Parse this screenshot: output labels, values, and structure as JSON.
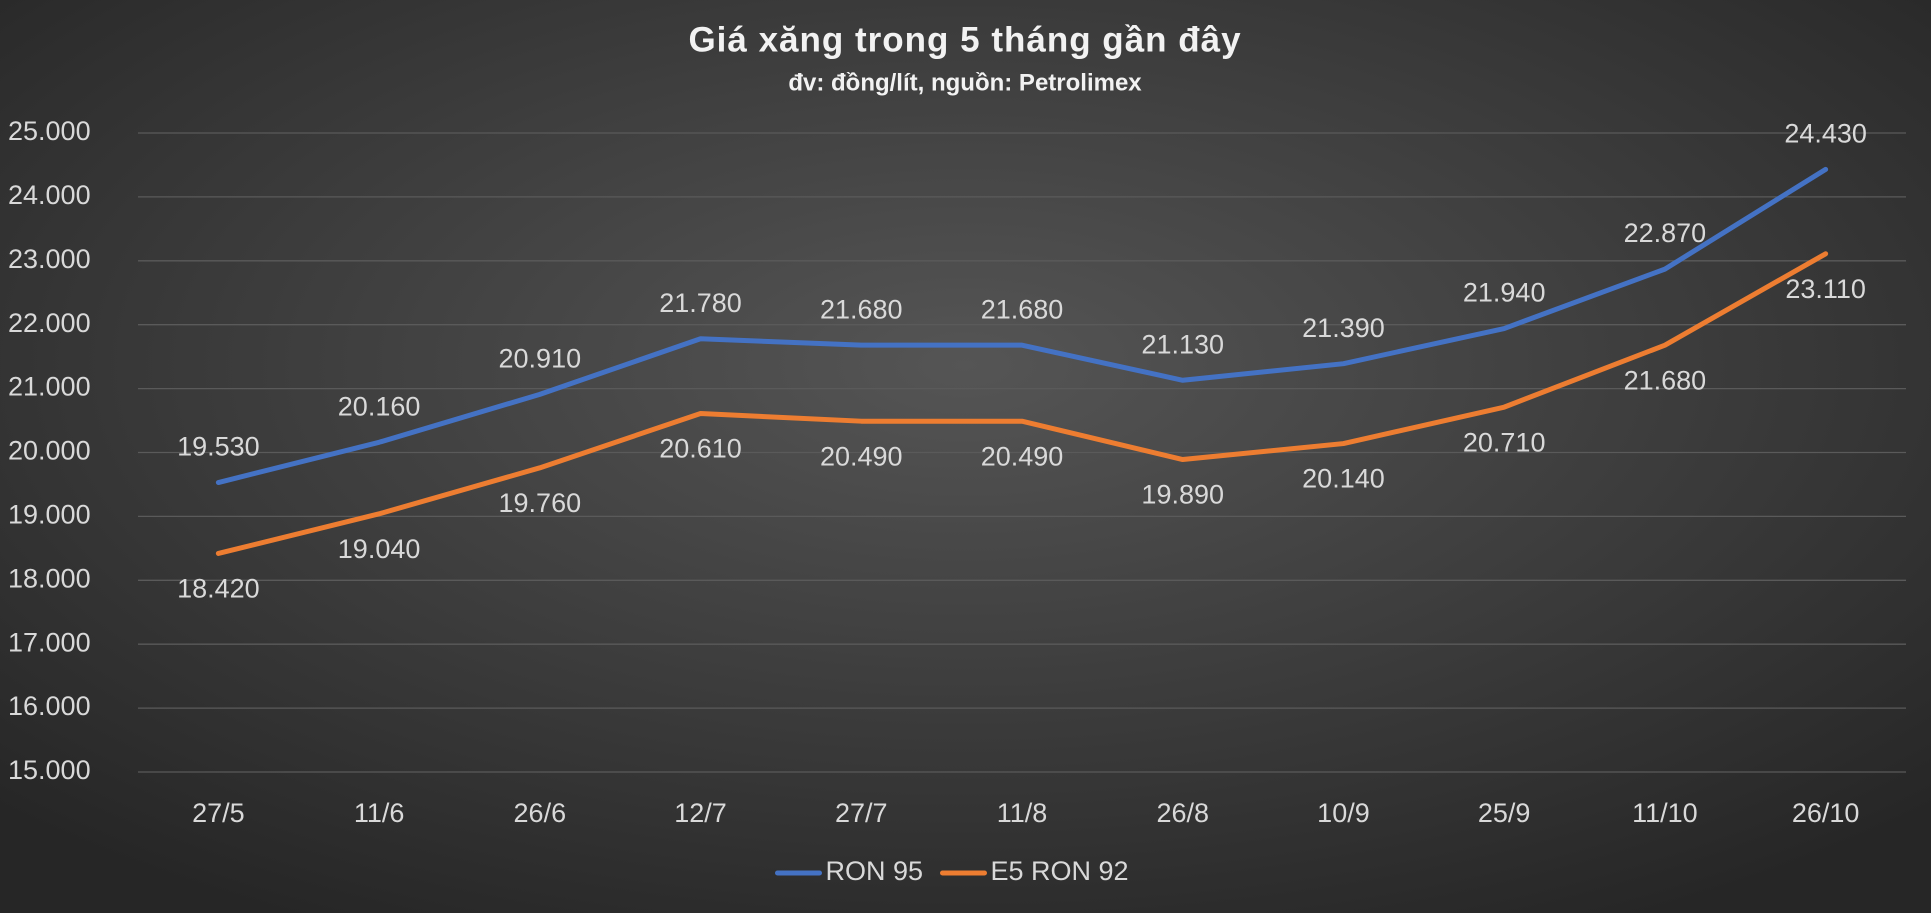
{
  "chart_data": {
    "type": "line",
    "title": "Giá xăng trong 5 tháng gần đây",
    "subtitle": "đv: đồng/lít, nguồn: Petrolimex",
    "categories": [
      "27/5",
      "11/6",
      "26/6",
      "12/7",
      "27/7",
      "11/8",
      "26/8",
      "10/9",
      "25/9",
      "11/10",
      "26/10"
    ],
    "series": [
      {
        "name": "RON 95",
        "color": "#4472c4",
        "values": [
          19530,
          20160,
          20910,
          21780,
          21680,
          21680,
          21130,
          21390,
          21940,
          22870,
          24430
        ],
        "value_labels": [
          "19.530",
          "20.160",
          "20.910",
          "21.780",
          "21.680",
          "21.680",
          "21.130",
          "21.390",
          "21.940",
          "22.870",
          "24.430"
        ]
      },
      {
        "name": "E5 RON 92",
        "color": "#ed7d31",
        "values": [
          18420,
          19040,
          19760,
          20610,
          20490,
          20490,
          19890,
          20140,
          20710,
          21680,
          23110
        ],
        "value_labels": [
          "18.420",
          "19.040",
          "19.760",
          "20.610",
          "20.490",
          "20.490",
          "19.890",
          "20.140",
          "20.710",
          "21.680",
          "23.110"
        ]
      }
    ],
    "ylim": [
      15000,
      25000
    ],
    "yticks": [
      {
        "value": 15000,
        "label": "15.000"
      },
      {
        "value": 16000,
        "label": "16.000"
      },
      {
        "value": 17000,
        "label": "17.000"
      },
      {
        "value": 18000,
        "label": "18.000"
      },
      {
        "value": 19000,
        "label": "19.000"
      },
      {
        "value": 20000,
        "label": "20.000"
      },
      {
        "value": 21000,
        "label": "21.000"
      },
      {
        "value": 22000,
        "label": "22.000"
      },
      {
        "value": 23000,
        "label": "23.000"
      },
      {
        "value": 24000,
        "label": "24.000"
      },
      {
        "value": 25000,
        "label": "25.000"
      }
    ],
    "grid": true,
    "legend": "bottom"
  }
}
